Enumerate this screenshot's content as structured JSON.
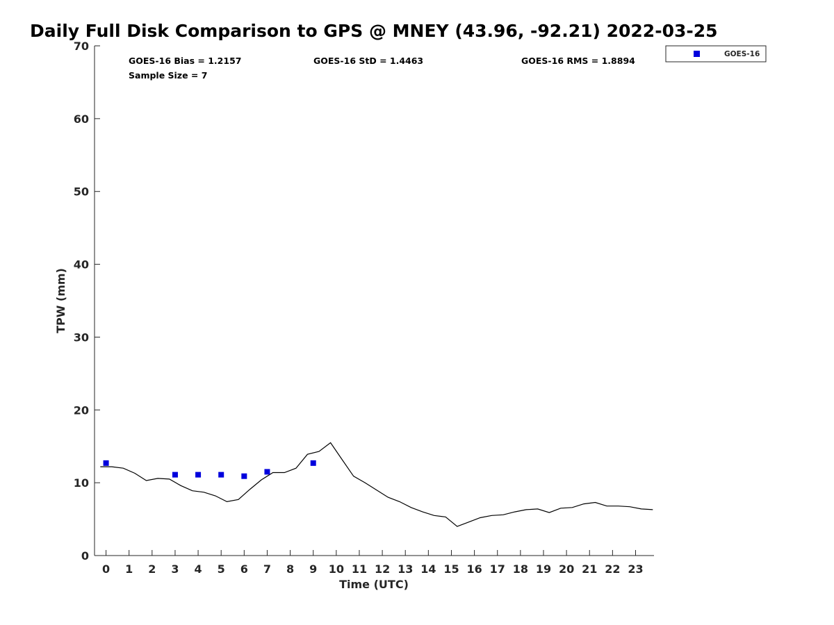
{
  "chart_data": {
    "type": "line",
    "title": "Daily Full Disk Comparison to GPS @ MNEY (43.96, -92.21) 2022-03-25",
    "xlabel": "Time (UTC)",
    "ylabel": "TPW (mm)",
    "xlim": [
      -0.5,
      23.8
    ],
    "ylim": [
      0,
      70
    ],
    "xticks": [
      0,
      1,
      2,
      3,
      4,
      5,
      6,
      7,
      8,
      9,
      10,
      11,
      12,
      13,
      14,
      15,
      16,
      17,
      18,
      19,
      20,
      21,
      22,
      23
    ],
    "yticks": [
      0,
      10,
      20,
      30,
      40,
      50,
      60,
      70
    ],
    "grid": false,
    "legend_position": "top-right",
    "annotations": [
      "GOES-16 Bias = 1.2157",
      "GOES-16 StD = 1.4463",
      "GOES-16 RMS = 1.8894",
      "Sample Size = 7"
    ],
    "series": [
      {
        "style": "line",
        "color": "#000000",
        "x": [
          -0.25,
          0.25,
          0.75,
          1.25,
          1.75,
          2.25,
          2.75,
          3.25,
          3.75,
          4.25,
          4.75,
          5.25,
          5.75,
          6.25,
          6.75,
          7.25,
          7.75,
          8.25,
          8.75,
          9.25,
          9.75,
          10.25,
          10.75,
          11.25,
          11.75,
          12.25,
          12.75,
          13.25,
          13.75,
          14.25,
          14.75,
          15.25,
          15.75,
          16.25,
          16.75,
          17.25,
          17.75,
          18.25,
          18.75,
          19.25,
          19.75,
          20.25,
          20.75,
          21.25,
          21.75,
          22.25,
          22.75,
          23.25,
          23.75
        ],
        "y": [
          12.2,
          12.2,
          12.0,
          11.3,
          10.3,
          10.6,
          10.5,
          9.6,
          8.9,
          8.7,
          8.2,
          7.4,
          7.7,
          9.1,
          10.4,
          11.4,
          11.4,
          12.0,
          13.9,
          14.3,
          15.5,
          13.2,
          10.9,
          10.0,
          9.0,
          8.0,
          7.4,
          6.6,
          6.0,
          5.5,
          5.3,
          4.0,
          4.6,
          5.2,
          5.5,
          5.6,
          6.0,
          6.3,
          6.4,
          5.9,
          6.5,
          6.6,
          7.1,
          7.3,
          6.8,
          6.8,
          6.7,
          6.4,
          6.3
        ]
      },
      {
        "name": "GOES-16",
        "style": "scatter",
        "marker": "square",
        "color": "#0000dd",
        "x": [
          0,
          3,
          4,
          5,
          6,
          7,
          9
        ],
        "y": [
          12.7,
          11.1,
          11.1,
          11.1,
          10.9,
          11.5,
          12.7
        ]
      }
    ]
  }
}
